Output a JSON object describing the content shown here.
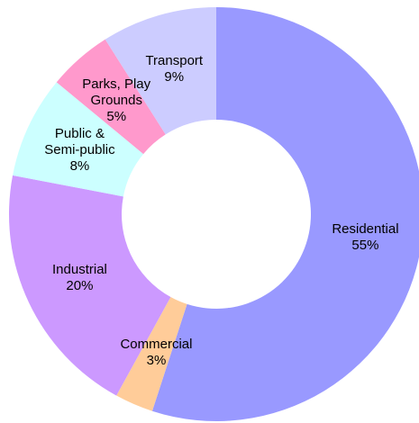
{
  "chart_data": {
    "type": "donut",
    "categories": [
      "Residential",
      "Commercial",
      "Industrial",
      "Public &\nSemi-public",
      "Parks, Play\nGrounds",
      "Transport"
    ],
    "values": [
      55,
      3,
      20,
      8,
      5,
      9
    ],
    "value_labels": [
      "55%",
      "3%",
      "20%",
      "8%",
      "5%",
      "9%"
    ],
    "colors": [
      "#9999ff",
      "#ffcc99",
      "#cc99ff",
      "#ccffff",
      "#ff99cc",
      "#ccccff"
    ]
  }
}
